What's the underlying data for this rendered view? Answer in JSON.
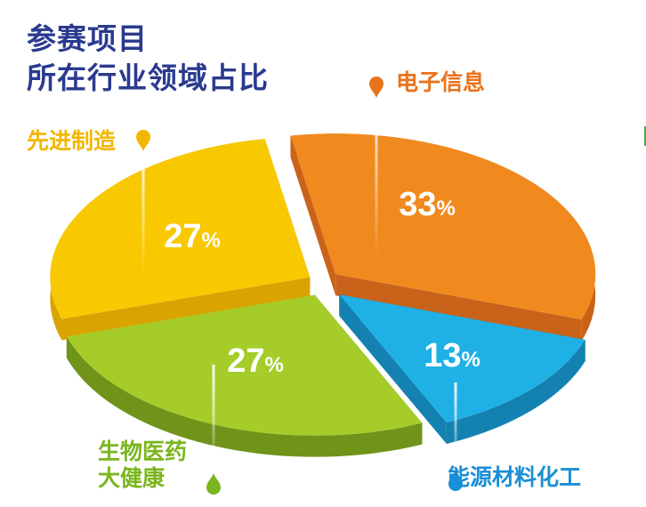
{
  "title": [
    "参赛项目",
    "所在行业领域占比"
  ],
  "chart_data": {
    "type": "pie",
    "categories": [
      "电子信息",
      "能源材料化工",
      "生物医药大健康",
      "先进制造"
    ],
    "values": [
      33,
      13,
      27,
      27
    ],
    "value_labels": [
      "33%",
      "13%",
      "27%",
      "27%"
    ],
    "label_lines": [
      [
        "电子信息"
      ],
      [
        "能源材料化工"
      ],
      [
        "生物医药",
        "大健康"
      ],
      [
        "先进制造"
      ]
    ],
    "colors": [
      "#f08a1e",
      "#1fb0e6",
      "#a6cc2a",
      "#f8c900"
    ],
    "side_colors": [
      "#c9631a",
      "#1482b0",
      "#6f9419",
      "#d9a300"
    ],
    "label_colors": [
      "#e8731b",
      "#1a8ed6",
      "#7ab51d",
      "#f2b600"
    ],
    "legend": "callouts",
    "style": "3d-exploded"
  }
}
